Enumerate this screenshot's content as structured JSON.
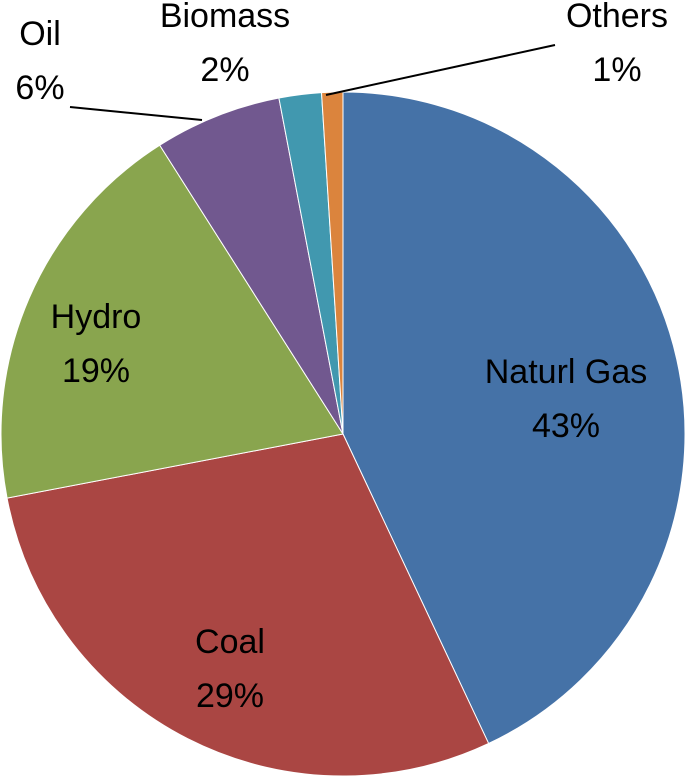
{
  "chart_data": {
    "type": "pie",
    "title": "",
    "start_angle_deg": 0,
    "direction": "clockwise",
    "slices": [
      {
        "name": "Naturl Gas",
        "label": "Naturl Gas",
        "pct_label": "43%",
        "value": 43,
        "color": "#4572A7"
      },
      {
        "name": "Coal",
        "label": "Coal",
        "pct_label": "29%",
        "value": 29,
        "color": "#AA4643"
      },
      {
        "name": "Hydro",
        "label": "Hydro",
        "pct_label": "19%",
        "value": 19,
        "color": "#89A54E"
      },
      {
        "name": "Oil",
        "label": "Oil",
        "pct_label": "6%",
        "value": 6,
        "color": "#71588F"
      },
      {
        "name": "Biomass",
        "label": "Biomass",
        "pct_label": "2%",
        "value": 2,
        "color": "#4198AF"
      },
      {
        "name": "Others",
        "label": "Others",
        "pct_label": "1%",
        "value": 1,
        "color": "#DB843D"
      }
    ],
    "legend": "none"
  }
}
